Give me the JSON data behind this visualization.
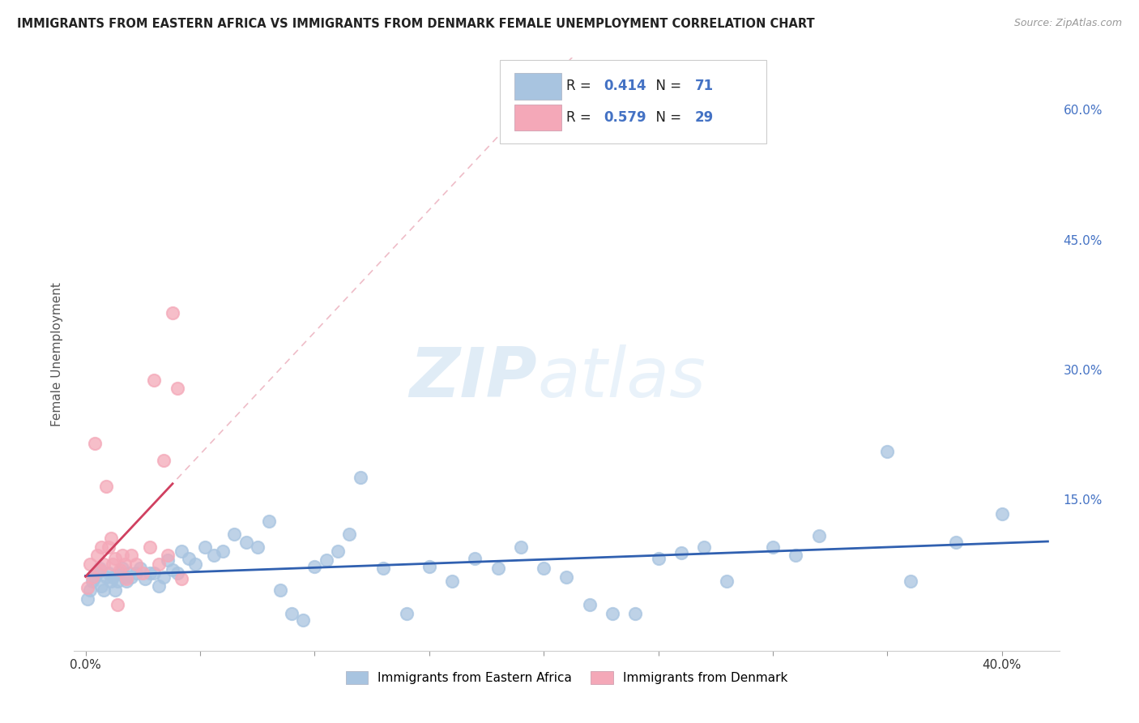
{
  "title": "IMMIGRANTS FROM EASTERN AFRICA VS IMMIGRANTS FROM DENMARK FEMALE UNEMPLOYMENT CORRELATION CHART",
  "source": "Source: ZipAtlas.com",
  "ylabel": "Female Unemployment",
  "x_tick_labels": [
    "0.0%",
    "",
    "",
    "",
    "",
    "",
    "",
    "",
    "40.0%"
  ],
  "x_tick_positions": [
    0.0,
    0.05,
    0.1,
    0.15,
    0.2,
    0.25,
    0.3,
    0.35,
    0.4
  ],
  "y_tick_labels_right": [
    "60.0%",
    "45.0%",
    "30.0%",
    "15.0%"
  ],
  "y_tick_positions_right": [
    0.6,
    0.45,
    0.3,
    0.15
  ],
  "xlim": [
    -0.005,
    0.425
  ],
  "ylim": [
    -0.025,
    0.66
  ],
  "blue_R": 0.414,
  "blue_N": 71,
  "pink_R": 0.579,
  "pink_N": 29,
  "blue_color": "#a8c4e0",
  "pink_color": "#f4a8b8",
  "blue_line_color": "#3060b0",
  "pink_line_color": "#d04060",
  "watermark_zip": "ZIP",
  "watermark_atlas": "atlas",
  "legend_label_blue": "Immigrants from Eastern Africa",
  "legend_label_pink": "Immigrants from Denmark",
  "blue_scatter_x": [
    0.001,
    0.002,
    0.003,
    0.004,
    0.005,
    0.006,
    0.007,
    0.008,
    0.009,
    0.01,
    0.011,
    0.012,
    0.013,
    0.014,
    0.015,
    0.016,
    0.017,
    0.018,
    0.019,
    0.02,
    0.022,
    0.024,
    0.026,
    0.028,
    0.03,
    0.032,
    0.034,
    0.036,
    0.038,
    0.04,
    0.042,
    0.045,
    0.048,
    0.052,
    0.056,
    0.06,
    0.065,
    0.07,
    0.075,
    0.08,
    0.085,
    0.09,
    0.095,
    0.1,
    0.105,
    0.11,
    0.115,
    0.12,
    0.13,
    0.14,
    0.15,
    0.16,
    0.17,
    0.18,
    0.19,
    0.2,
    0.21,
    0.22,
    0.23,
    0.24,
    0.25,
    0.26,
    0.27,
    0.28,
    0.3,
    0.31,
    0.32,
    0.35,
    0.36,
    0.38,
    0.4
  ],
  "blue_scatter_y": [
    0.035,
    0.045,
    0.055,
    0.06,
    0.065,
    0.07,
    0.05,
    0.045,
    0.06,
    0.065,
    0.055,
    0.06,
    0.045,
    0.055,
    0.065,
    0.07,
    0.06,
    0.055,
    0.065,
    0.06,
    0.065,
    0.07,
    0.058,
    0.065,
    0.065,
    0.05,
    0.06,
    0.08,
    0.068,
    0.065,
    0.09,
    0.082,
    0.075,
    0.095,
    0.085,
    0.09,
    0.11,
    0.1,
    0.095,
    0.125,
    0.045,
    0.018,
    0.01,
    0.072,
    0.08,
    0.09,
    0.11,
    0.175,
    0.07,
    0.018,
    0.072,
    0.055,
    0.082,
    0.07,
    0.095,
    0.07,
    0.06,
    0.028,
    0.018,
    0.018,
    0.082,
    0.088,
    0.095,
    0.055,
    0.095,
    0.085,
    0.108,
    0.205,
    0.055,
    0.1,
    0.133
  ],
  "pink_scatter_x": [
    0.001,
    0.002,
    0.003,
    0.004,
    0.005,
    0.006,
    0.007,
    0.008,
    0.009,
    0.01,
    0.011,
    0.012,
    0.013,
    0.014,
    0.015,
    0.016,
    0.017,
    0.018,
    0.02,
    0.022,
    0.025,
    0.028,
    0.03,
    0.032,
    0.034,
    0.036,
    0.038,
    0.04,
    0.042
  ],
  "pink_scatter_y": [
    0.048,
    0.075,
    0.06,
    0.215,
    0.085,
    0.068,
    0.095,
    0.075,
    0.165,
    0.095,
    0.105,
    0.075,
    0.082,
    0.028,
    0.068,
    0.085,
    0.075,
    0.058,
    0.085,
    0.075,
    0.065,
    0.095,
    0.288,
    0.075,
    0.195,
    0.085,
    0.365,
    0.278,
    0.058
  ]
}
